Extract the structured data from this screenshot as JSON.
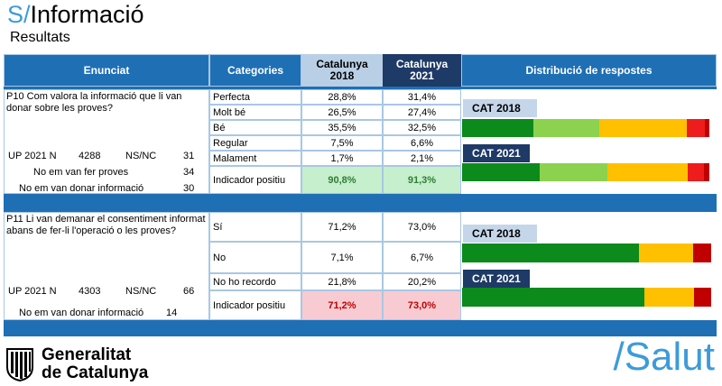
{
  "header": {
    "brand_slash": "S/",
    "brand_word": "Informació",
    "subtitle": "Resultats"
  },
  "columns": {
    "enunciat": "Enunciat",
    "categories": "Categories",
    "cat2018": [
      "Catalunya",
      "2018"
    ],
    "cat2021": [
      "Catalunya",
      "2021"
    ],
    "distribucio": "Distribució de respostes"
  },
  "colors": {
    "dark_green": "#0c8a1c",
    "light_green": "#8dd24e",
    "yellow": "#ffc000",
    "red": "#ee1c1c",
    "dark_red": "#c00000",
    "header_blue": "#1f6fb5",
    "navy": "#1e3a66",
    "light_blue": "#b9cfe6"
  },
  "p10": {
    "question": "P10 Com valora la informació que li van donar sobre les proves?",
    "stats": {
      "up_label": "UP 2021 N",
      "up_n": "4288",
      "nsnc_label": "NS/NC",
      "nsnc_value": "31",
      "no_proves_label": "No em van fer proves",
      "no_proves_value": "34",
      "no_info_label": "No em van donar informació",
      "no_info_value": "30"
    },
    "rows": [
      {
        "category": "Perfecta",
        "v2018": "28,8%",
        "v2021": "31,4%"
      },
      {
        "category": "Molt bé",
        "v2018": "26,5%",
        "v2021": "27,4%"
      },
      {
        "category": "Bé",
        "v2018": "35,5%",
        "v2021": "32,5%"
      },
      {
        "category": "Regular",
        "v2018": "7,5%",
        "v2021": "6,6%"
      },
      {
        "category": "Malament",
        "v2018": "1,7%",
        "v2021": "2,1%"
      }
    ],
    "indicator": {
      "label": "Indicador positiu",
      "v2018": "90,8%",
      "v2021": "91,3%"
    },
    "chart": {
      "cat2018_label": "CAT 2018",
      "cat2021_label": "CAT 2021",
      "v2018": [
        28.8,
        26.5,
        35.5,
        7.5,
        1.7
      ],
      "v2021": [
        31.4,
        27.4,
        32.5,
        6.6,
        2.1
      ]
    }
  },
  "p11": {
    "question": "P11 Li van demanar el consentiment informat abans de fer-li l'operació o les proves?",
    "stats": {
      "up_label": "UP 2021 N",
      "up_n": "4303",
      "nsnc_label": "NS/NC",
      "nsnc_value": "66",
      "no_info_label": "No em van donar informació",
      "no_info_value": "14"
    },
    "rows": [
      {
        "category": "Sí",
        "v2018": "71,2%",
        "v2021": "73,0%"
      },
      {
        "category": "No",
        "v2018": "7,1%",
        "v2021": "6,7%"
      },
      {
        "category": "No ho recordo",
        "v2018": "21,8%",
        "v2021": "20,2%"
      }
    ],
    "indicator": {
      "label": "Indicador positiu",
      "v2018": "71,2%",
      "v2021": "73,0%"
    },
    "chart": {
      "cat2018_label": "CAT 2018",
      "cat2021_label": "CAT 2021",
      "v2018": [
        71.2,
        21.8,
        7.1
      ],
      "v2021": [
        73.0,
        20.2,
        6.7
      ]
    }
  },
  "footer": {
    "gen_line1": "Generalitat",
    "gen_line2": "de Catalunya",
    "salut": "/Salut"
  }
}
